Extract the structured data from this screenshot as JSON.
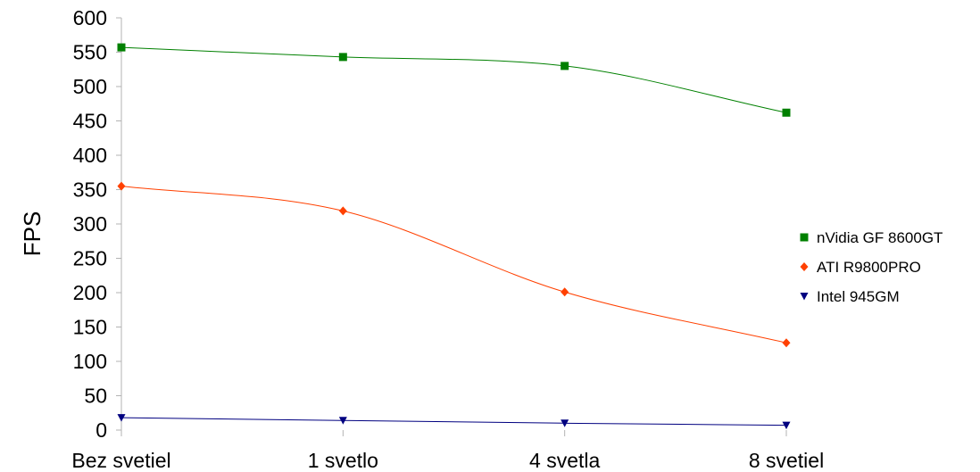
{
  "chart_data": {
    "type": "line",
    "title": "",
    "xlabel": "",
    "ylabel": "FPS",
    "categories": [
      "Bez svetiel",
      "1 svetlo",
      "4 svetla",
      "8 svetiel"
    ],
    "ylim": [
      0,
      600
    ],
    "yticks": [
      0,
      50,
      100,
      150,
      200,
      250,
      300,
      350,
      400,
      450,
      500,
      550,
      600
    ],
    "grid": false,
    "legend_position": "right",
    "smoothed": true,
    "series": [
      {
        "name": "nVidia GF 8600GT",
        "values": [
          557,
          543,
          530,
          462
        ],
        "color": "#008000",
        "marker": "square"
      },
      {
        "name": "ATI R9800PRO",
        "values": [
          355,
          319,
          201,
          127
        ],
        "color": "#ff4000",
        "marker": "diamond"
      },
      {
        "name": "Intel 945GM",
        "values": [
          18,
          14,
          10,
          7
        ],
        "color": "#000080",
        "marker": "triangle-down"
      }
    ]
  }
}
